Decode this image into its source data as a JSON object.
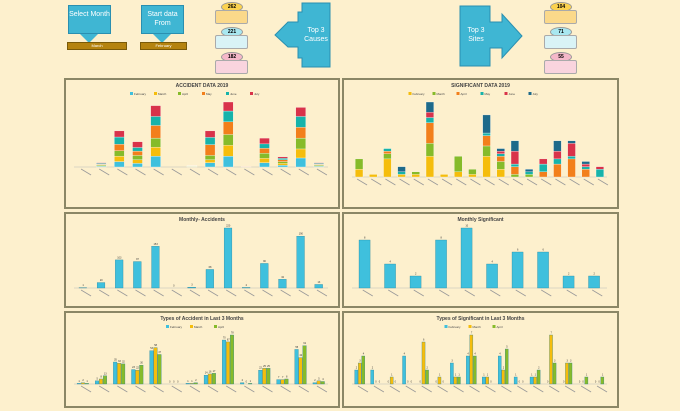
{
  "controls": {
    "select_month": {
      "label": "Select Month",
      "value": "March"
    },
    "start_from": {
      "label": "Start data From",
      "value": "February"
    }
  },
  "top_causes": {
    "label": "Top 3 Causes",
    "items": [
      {
        "count": "262",
        "bg": "#fbd98a",
        "oval": "#fbd24f"
      },
      {
        "count": "221",
        "bg": "#d9f3f6",
        "oval": "#a8e7f0"
      },
      {
        "count": "182",
        "bg": "#f9d4de",
        "oval": "#f5b8c9"
      }
    ]
  },
  "top_sites": {
    "label": "Top 3 Sites",
    "items": [
      {
        "count": "104",
        "bg": "#fbd98a",
        "oval": "#fbd24f"
      },
      {
        "count": "71",
        "bg": "#d9f3f6",
        "oval": "#a8e7f0"
      },
      {
        "count": "55",
        "bg": "#f9d4de",
        "oval": "#f5b8c9"
      }
    ]
  },
  "colors": {
    "cyan": "#3fc0dd",
    "yellow": "#f5bd0c",
    "green": "#86bb2a",
    "orange": "#f27f1b",
    "teal": "#17b3aa",
    "red": "#d9334a",
    "navy": "#1e6a8a"
  },
  "chart_data": [
    {
      "id": "acc",
      "type": "bar",
      "stacked": true,
      "title": "ACCIDENT DATA 2019",
      "series": [
        {
          "name": "February",
          "color": "#3fc0dd",
          "values": [
            0,
            2,
            15,
            10,
            30,
            0,
            1,
            12,
            30,
            0,
            12,
            5,
            25,
            2
          ]
        },
        {
          "name": "March",
          "color": "#f5bd0c",
          "values": [
            0,
            2,
            15,
            10,
            25,
            0,
            1,
            8,
            30,
            0,
            12,
            5,
            25,
            2
          ]
        },
        {
          "name": "April",
          "color": "#86bb2a",
          "values": [
            0,
            2,
            15,
            12,
            25,
            0,
            1,
            12,
            30,
            1,
            14,
            5,
            30,
            2
          ]
        },
        {
          "name": "May",
          "color": "#f27f1b",
          "values": [
            0,
            2,
            18,
            12,
            35,
            0,
            1,
            30,
            35,
            1,
            14,
            5,
            30,
            2
          ]
        },
        {
          "name": "June",
          "color": "#17b3aa",
          "values": [
            0,
            2,
            20,
            10,
            25,
            0,
            0,
            20,
            30,
            0,
            12,
            4,
            30,
            2
          ]
        },
        {
          "name": "July",
          "color": "#d9334a",
          "values": [
            0,
            2,
            17,
            16,
            30,
            0,
            0,
            18,
            25,
            0,
            16,
            4,
            25,
            2
          ]
        }
      ]
    },
    {
      "id": "sig",
      "type": "bar",
      "stacked": true,
      "title": "SIGNIFICANT DATA 2019",
      "series": [
        {
          "name": "February",
          "color": "#f5bd0c",
          "values": [
            3,
            1,
            7,
            1,
            1,
            8,
            1,
            2,
            1,
            8,
            3,
            0,
            0,
            0,
            0,
            0,
            0,
            0
          ]
        },
        {
          "name": "March",
          "color": "#86bb2a",
          "values": [
            4,
            0,
            2,
            0,
            1,
            5,
            0,
            6,
            2,
            4,
            3,
            1,
            1,
            0,
            0,
            0,
            0,
            0
          ]
        },
        {
          "name": "April",
          "color": "#f27f1b",
          "values": [
            0,
            0,
            1,
            0,
            0,
            8,
            0,
            0,
            0,
            4,
            2,
            3,
            0,
            2,
            5,
            7,
            3,
            0
          ]
        },
        {
          "name": "May",
          "color": "#17b3aa",
          "values": [
            0,
            0,
            1,
            1,
            0,
            2,
            0,
            0,
            0,
            1,
            1,
            1,
            1,
            3,
            2,
            1,
            1,
            3
          ]
        },
        {
          "name": "June",
          "color": "#d9334a",
          "values": [
            0,
            0,
            0,
            0,
            0,
            2,
            0,
            0,
            0,
            0,
            1,
            5,
            0,
            2,
            3,
            5,
            1,
            1
          ]
        },
        {
          "name": "July",
          "color": "#1e6a8a",
          "values": [
            0,
            0,
            0,
            2,
            0,
            4,
            0,
            0,
            0,
            7,
            1,
            4,
            1,
            0,
            4,
            1,
            1,
            0
          ]
        }
      ]
    },
    {
      "id": "macc",
      "type": "bar",
      "title": "Monthly- Accidents",
      "labels": true,
      "series": [
        {
          "color": "#3fc0dd",
          "values": [
            1,
            20,
            103,
            97,
            153,
            0,
            3,
            68,
            220,
            2,
            90,
            32,
            190,
            13
          ]
        }
      ]
    },
    {
      "id": "msig",
      "type": "bar",
      "title": "Monthly Significant",
      "labels": true,
      "series": [
        {
          "color": "#3fc0dd",
          "values": [
            8,
            4,
            2,
            8,
            10,
            4,
            6,
            6,
            2,
            2
          ]
        }
      ]
    },
    {
      "id": "tacc",
      "type": "bar",
      "title": "Types of Accident in Last 3 Months",
      "labels": true,
      "series": [
        {
          "name": "February",
          "color": "#3fc0dd",
          "values": [
            1,
            5,
            35,
            23,
            53,
            0,
            1,
            14,
            70,
            2,
            22,
            7,
            55,
            2
          ]
        },
        {
          "name": "March",
          "color": "#f5bd0c",
          "values": [
            2,
            8,
            33,
            22,
            58,
            0,
            1,
            16,
            67,
            0,
            25,
            7,
            42,
            5
          ]
        },
        {
          "name": "April",
          "color": "#86bb2a",
          "values": [
            1,
            13,
            32,
            30,
            47,
            0,
            2,
            17,
            78,
            1,
            25,
            8,
            61,
            4
          ]
        }
      ]
    },
    {
      "id": "tsig",
      "type": "bar",
      "title": "Types of Significant in Last 3 Months",
      "labels": true,
      "series": [
        {
          "name": "February",
          "color": "#3fc0dd",
          "values": [
            2,
            2,
            0,
            4,
            0,
            0,
            3,
            4,
            1,
            4,
            1,
            1,
            0,
            0,
            0,
            0
          ]
        },
        {
          "name": "March",
          "color": "#f5bd0c",
          "values": [
            3,
            0,
            1,
            0,
            6,
            1,
            1,
            7,
            1,
            2,
            0,
            1,
            7,
            3,
            0,
            0
          ]
        },
        {
          "name": "April",
          "color": "#86bb2a",
          "values": [
            4,
            0,
            0,
            0,
            2,
            0,
            1,
            4,
            0,
            5,
            0,
            2,
            3,
            3,
            1,
            1
          ]
        }
      ]
    }
  ]
}
